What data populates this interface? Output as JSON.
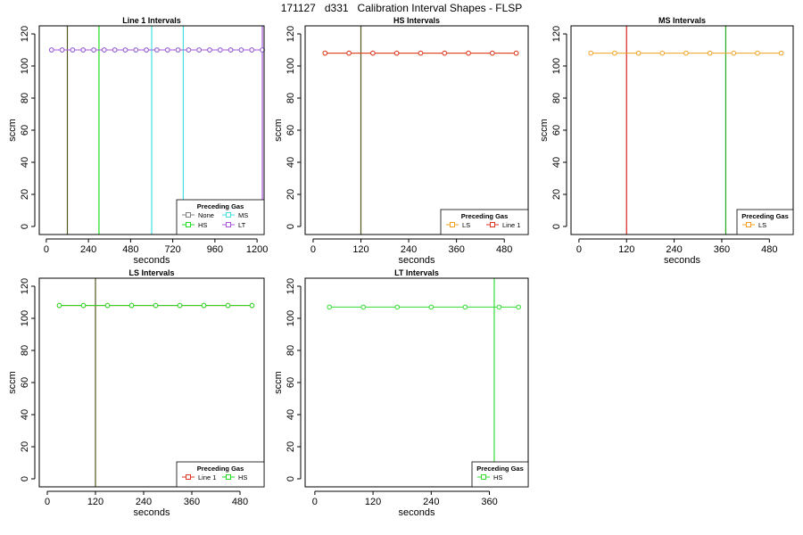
{
  "page": {
    "title": "171127   d331   Calibration Interval Shapes - FLSP"
  },
  "legend_title": "Preceding Gas",
  "colors": {
    "None": "#808080",
    "HS": "#22dd22",
    "MS": "#44e0e0",
    "LT": "#aa55dd",
    "LS": "#f0a020",
    "Line 1": "#dd3322",
    "vline_dark": "#555522",
    "vline_red": "#dd2222",
    "vline_green": "#22aa22",
    "vline_lime": "#33dd33"
  },
  "chart_data": [
    {
      "type": "line",
      "title": "Line 1 Intervals",
      "xlabel": "seconds",
      "ylabel": "sccm",
      "xlim": [
        -40,
        1240
      ],
      "ylim": [
        -5,
        125
      ],
      "xticks": [
        0,
        240,
        480,
        720,
        960,
        1200
      ],
      "yticks": [
        0,
        20,
        40,
        60,
        80,
        100,
        120
      ],
      "vlines": [
        {
          "x": 120,
          "color": "#555522"
        },
        {
          "x": 300,
          "color": "#22dd22"
        },
        {
          "x": 600,
          "color": "#44e0e0"
        },
        {
          "x": 780,
          "color": "#44e0e0"
        },
        {
          "x": 1230,
          "color": "#aa55dd"
        }
      ],
      "series": [
        {
          "name": "None",
          "color": "#808080",
          "x": [
            30,
            90,
            150,
            210,
            270,
            330,
            390,
            450,
            510,
            570,
            630,
            690,
            750,
            810,
            870,
            930,
            990,
            1050,
            1110,
            1170,
            1230
          ],
          "y": [
            110,
            110,
            110,
            110,
            110,
            110,
            110,
            110,
            110,
            110,
            110,
            110,
            110,
            110,
            110,
            110,
            110,
            110,
            110,
            110,
            110
          ]
        },
        {
          "name": "HS",
          "color": "#22dd22",
          "x": [
            30,
            90,
            150,
            210,
            270,
            330,
            390,
            450,
            510,
            570,
            630,
            690,
            750,
            810,
            870,
            930,
            990,
            1050,
            1110,
            1170,
            1230
          ],
          "y": [
            110,
            110,
            110,
            110,
            110,
            110,
            110,
            110,
            110,
            110,
            110,
            110,
            110,
            110,
            110,
            110,
            110,
            110,
            110,
            110,
            110
          ]
        },
        {
          "name": "MS",
          "color": "#44e0e0",
          "x": [
            30,
            90,
            150,
            210,
            270,
            330,
            390,
            450,
            510,
            570,
            630,
            690,
            750,
            810,
            870,
            930,
            990,
            1050,
            1110,
            1170,
            1230
          ],
          "y": [
            110,
            110,
            110,
            110,
            110,
            110,
            110,
            110,
            110,
            110,
            110,
            110,
            110,
            110,
            110,
            110,
            110,
            110,
            110,
            110,
            110
          ]
        },
        {
          "name": "LT",
          "color": "#aa55dd",
          "x": [
            30,
            90,
            150,
            210,
            270,
            330,
            390,
            450,
            510,
            570,
            630,
            690,
            750,
            810,
            870,
            930,
            990,
            1050,
            1110,
            1170,
            1230
          ],
          "y": [
            110,
            110,
            110,
            110,
            110,
            110,
            110,
            110,
            110,
            110,
            110,
            110,
            110,
            110,
            110,
            110,
            110,
            110,
            110,
            110,
            110
          ]
        }
      ],
      "legend": {
        "position": "bottom-right",
        "columns": 2,
        "entries": [
          "None",
          "MS",
          "HS",
          "LT"
        ]
      }
    },
    {
      "type": "line",
      "title": "HS Intervals",
      "xlabel": "seconds",
      "ylabel": "sccm",
      "xlim": [
        -20,
        540
      ],
      "ylim": [
        -5,
        125
      ],
      "xticks": [
        0,
        120,
        240,
        360,
        480
      ],
      "yticks": [
        0,
        20,
        40,
        60,
        80,
        100,
        120
      ],
      "vlines": [
        {
          "x": 120,
          "color": "#555522"
        }
      ],
      "series": [
        {
          "name": "LS",
          "color": "#f0a020",
          "x": [
            30,
            90,
            150,
            210,
            270,
            330,
            390,
            450,
            510
          ],
          "y": [
            108,
            108,
            108,
            108,
            108,
            108,
            108,
            108,
            108
          ]
        },
        {
          "name": "Line 1",
          "color": "#dd3322",
          "x": [
            30,
            90,
            150,
            210,
            270,
            330,
            390,
            450,
            510
          ],
          "y": [
            108,
            108,
            108,
            108,
            108,
            108,
            108,
            108,
            108
          ]
        }
      ],
      "legend": {
        "position": "bottom-right",
        "columns": 2,
        "entries": [
          "LS",
          "Line 1"
        ]
      }
    },
    {
      "type": "line",
      "title": "MS Intervals",
      "xlabel": "seconds",
      "ylabel": "sccm",
      "xlim": [
        -20,
        540
      ],
      "ylim": [
        -5,
        125
      ],
      "xticks": [
        0,
        120,
        240,
        360,
        480
      ],
      "yticks": [
        0,
        20,
        40,
        60,
        80,
        100,
        120
      ],
      "vlines": [
        {
          "x": 120,
          "color": "#dd2222"
        },
        {
          "x": 370,
          "color": "#22aa22"
        }
      ],
      "series": [
        {
          "name": "LS",
          "color": "#f0a020",
          "x": [
            30,
            90,
            150,
            210,
            270,
            330,
            390,
            450,
            510
          ],
          "y": [
            108,
            108,
            108,
            108,
            108,
            108,
            108,
            108,
            108
          ]
        }
      ],
      "legend": {
        "position": "bottom-right",
        "columns": 1,
        "entries": [
          "LS"
        ]
      }
    },
    {
      "type": "line",
      "title": "LS Intervals",
      "xlabel": "seconds",
      "ylabel": "sccm",
      "xlim": [
        -20,
        540
      ],
      "ylim": [
        -5,
        125
      ],
      "xticks": [
        0,
        120,
        240,
        360,
        480
      ],
      "yticks": [
        0,
        20,
        40,
        60,
        80,
        100,
        120
      ],
      "vlines": [
        {
          "x": 120,
          "color": "#555522"
        }
      ],
      "series": [
        {
          "name": "Line 1",
          "color": "#dd3322",
          "x": [
            30,
            90,
            150,
            210,
            270,
            330,
            390,
            450,
            510
          ],
          "y": [
            108,
            108,
            108,
            108,
            108,
            108,
            108,
            108,
            108
          ]
        },
        {
          "name": "HS",
          "color": "#22dd22",
          "x": [
            30,
            90,
            150,
            210,
            270,
            330,
            390,
            450,
            510
          ],
          "y": [
            108,
            108,
            108,
            108,
            108,
            108,
            108,
            108,
            108
          ]
        }
      ],
      "legend": {
        "position": "bottom-right",
        "columns": 2,
        "entries": [
          "Line 1",
          "HS"
        ]
      }
    },
    {
      "type": "line",
      "title": "LT Intervals",
      "xlabel": "seconds",
      "ylabel": "sccm",
      "xlim": [
        -20,
        440
      ],
      "ylim": [
        -5,
        125
      ],
      "xticks": [
        0,
        120,
        240,
        360
      ],
      "yticks": [
        0,
        20,
        40,
        60,
        80,
        100,
        120
      ],
      "vlines": [
        {
          "x": 370,
          "color": "#33dd33"
        }
      ],
      "series": [
        {
          "name": "HS",
          "color": "#33dd33",
          "x": [
            30,
            100,
            170,
            240,
            310,
            380,
            420
          ],
          "y": [
            107,
            107,
            107,
            107,
            107,
            107,
            107
          ]
        }
      ],
      "legend": {
        "position": "bottom-right",
        "columns": 1,
        "entries": [
          "HS"
        ]
      }
    }
  ]
}
